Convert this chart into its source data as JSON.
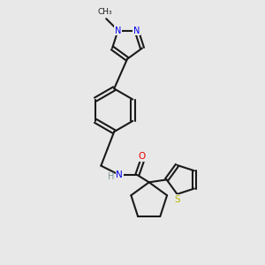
{
  "bg_color": "#e8e8e8",
  "bond_color": "#1a1a1a",
  "N_color": "#0000ee",
  "O_color": "#ee0000",
  "S_color": "#b8b800",
  "H_color": "#7a9a9a",
  "line_width": 1.5,
  "figsize": [
    3.0,
    3.0
  ],
  "dpi": 100,
  "xlim": [
    0,
    10
  ],
  "ylim": [
    0,
    10
  ]
}
